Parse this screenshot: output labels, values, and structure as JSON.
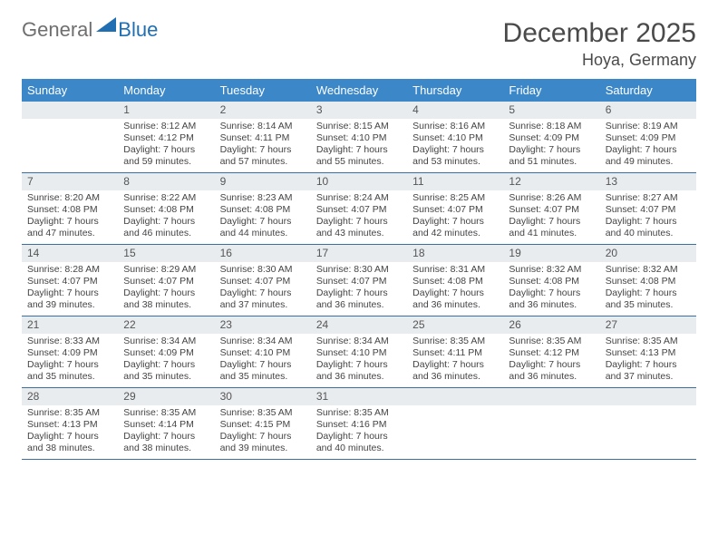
{
  "logo": {
    "general": "General",
    "blue": "Blue"
  },
  "title": "December 2025",
  "location": "Hoya, Germany",
  "colors": {
    "header_bg": "#3b87c8",
    "header_text": "#ffffff",
    "daynum_bg": "#e9ecef",
    "border": "#3b6fa0",
    "logo_general": "#706f6f",
    "logo_blue": "#1f6fb2",
    "body_text": "#444444",
    "title_text": "#4a4a4a",
    "page_bg": "#ffffff"
  },
  "typography": {
    "title_fontsize": 30,
    "location_fontsize": 18,
    "header_fontsize": 13,
    "daynum_fontsize": 12,
    "body_fontsize": 10.5,
    "logo_fontsize": 22
  },
  "day_headers": [
    "Sunday",
    "Monday",
    "Tuesday",
    "Wednesday",
    "Thursday",
    "Friday",
    "Saturday"
  ],
  "weeks": [
    [
      {
        "empty": true
      },
      {
        "num": "1",
        "sunrise": "Sunrise: 8:12 AM",
        "sunset": "Sunset: 4:12 PM",
        "dl1": "Daylight: 7 hours",
        "dl2": "and 59 minutes."
      },
      {
        "num": "2",
        "sunrise": "Sunrise: 8:14 AM",
        "sunset": "Sunset: 4:11 PM",
        "dl1": "Daylight: 7 hours",
        "dl2": "and 57 minutes."
      },
      {
        "num": "3",
        "sunrise": "Sunrise: 8:15 AM",
        "sunset": "Sunset: 4:10 PM",
        "dl1": "Daylight: 7 hours",
        "dl2": "and 55 minutes."
      },
      {
        "num": "4",
        "sunrise": "Sunrise: 8:16 AM",
        "sunset": "Sunset: 4:10 PM",
        "dl1": "Daylight: 7 hours",
        "dl2": "and 53 minutes."
      },
      {
        "num": "5",
        "sunrise": "Sunrise: 8:18 AM",
        "sunset": "Sunset: 4:09 PM",
        "dl1": "Daylight: 7 hours",
        "dl2": "and 51 minutes."
      },
      {
        "num": "6",
        "sunrise": "Sunrise: 8:19 AM",
        "sunset": "Sunset: 4:09 PM",
        "dl1": "Daylight: 7 hours",
        "dl2": "and 49 minutes."
      }
    ],
    [
      {
        "num": "7",
        "sunrise": "Sunrise: 8:20 AM",
        "sunset": "Sunset: 4:08 PM",
        "dl1": "Daylight: 7 hours",
        "dl2": "and 47 minutes."
      },
      {
        "num": "8",
        "sunrise": "Sunrise: 8:22 AM",
        "sunset": "Sunset: 4:08 PM",
        "dl1": "Daylight: 7 hours",
        "dl2": "and 46 minutes."
      },
      {
        "num": "9",
        "sunrise": "Sunrise: 8:23 AM",
        "sunset": "Sunset: 4:08 PM",
        "dl1": "Daylight: 7 hours",
        "dl2": "and 44 minutes."
      },
      {
        "num": "10",
        "sunrise": "Sunrise: 8:24 AM",
        "sunset": "Sunset: 4:07 PM",
        "dl1": "Daylight: 7 hours",
        "dl2": "and 43 minutes."
      },
      {
        "num": "11",
        "sunrise": "Sunrise: 8:25 AM",
        "sunset": "Sunset: 4:07 PM",
        "dl1": "Daylight: 7 hours",
        "dl2": "and 42 minutes."
      },
      {
        "num": "12",
        "sunrise": "Sunrise: 8:26 AM",
        "sunset": "Sunset: 4:07 PM",
        "dl1": "Daylight: 7 hours",
        "dl2": "and 41 minutes."
      },
      {
        "num": "13",
        "sunrise": "Sunrise: 8:27 AM",
        "sunset": "Sunset: 4:07 PM",
        "dl1": "Daylight: 7 hours",
        "dl2": "and 40 minutes."
      }
    ],
    [
      {
        "num": "14",
        "sunrise": "Sunrise: 8:28 AM",
        "sunset": "Sunset: 4:07 PM",
        "dl1": "Daylight: 7 hours",
        "dl2": "and 39 minutes."
      },
      {
        "num": "15",
        "sunrise": "Sunrise: 8:29 AM",
        "sunset": "Sunset: 4:07 PM",
        "dl1": "Daylight: 7 hours",
        "dl2": "and 38 minutes."
      },
      {
        "num": "16",
        "sunrise": "Sunrise: 8:30 AM",
        "sunset": "Sunset: 4:07 PM",
        "dl1": "Daylight: 7 hours",
        "dl2": "and 37 minutes."
      },
      {
        "num": "17",
        "sunrise": "Sunrise: 8:30 AM",
        "sunset": "Sunset: 4:07 PM",
        "dl1": "Daylight: 7 hours",
        "dl2": "and 36 minutes."
      },
      {
        "num": "18",
        "sunrise": "Sunrise: 8:31 AM",
        "sunset": "Sunset: 4:08 PM",
        "dl1": "Daylight: 7 hours",
        "dl2": "and 36 minutes."
      },
      {
        "num": "19",
        "sunrise": "Sunrise: 8:32 AM",
        "sunset": "Sunset: 4:08 PM",
        "dl1": "Daylight: 7 hours",
        "dl2": "and 36 minutes."
      },
      {
        "num": "20",
        "sunrise": "Sunrise: 8:32 AM",
        "sunset": "Sunset: 4:08 PM",
        "dl1": "Daylight: 7 hours",
        "dl2": "and 35 minutes."
      }
    ],
    [
      {
        "num": "21",
        "sunrise": "Sunrise: 8:33 AM",
        "sunset": "Sunset: 4:09 PM",
        "dl1": "Daylight: 7 hours",
        "dl2": "and 35 minutes."
      },
      {
        "num": "22",
        "sunrise": "Sunrise: 8:34 AM",
        "sunset": "Sunset: 4:09 PM",
        "dl1": "Daylight: 7 hours",
        "dl2": "and 35 minutes."
      },
      {
        "num": "23",
        "sunrise": "Sunrise: 8:34 AM",
        "sunset": "Sunset: 4:10 PM",
        "dl1": "Daylight: 7 hours",
        "dl2": "and 35 minutes."
      },
      {
        "num": "24",
        "sunrise": "Sunrise: 8:34 AM",
        "sunset": "Sunset: 4:10 PM",
        "dl1": "Daylight: 7 hours",
        "dl2": "and 36 minutes."
      },
      {
        "num": "25",
        "sunrise": "Sunrise: 8:35 AM",
        "sunset": "Sunset: 4:11 PM",
        "dl1": "Daylight: 7 hours",
        "dl2": "and 36 minutes."
      },
      {
        "num": "26",
        "sunrise": "Sunrise: 8:35 AM",
        "sunset": "Sunset: 4:12 PM",
        "dl1": "Daylight: 7 hours",
        "dl2": "and 36 minutes."
      },
      {
        "num": "27",
        "sunrise": "Sunrise: 8:35 AM",
        "sunset": "Sunset: 4:13 PM",
        "dl1": "Daylight: 7 hours",
        "dl2": "and 37 minutes."
      }
    ],
    [
      {
        "num": "28",
        "sunrise": "Sunrise: 8:35 AM",
        "sunset": "Sunset: 4:13 PM",
        "dl1": "Daylight: 7 hours",
        "dl2": "and 38 minutes."
      },
      {
        "num": "29",
        "sunrise": "Sunrise: 8:35 AM",
        "sunset": "Sunset: 4:14 PM",
        "dl1": "Daylight: 7 hours",
        "dl2": "and 38 minutes."
      },
      {
        "num": "30",
        "sunrise": "Sunrise: 8:35 AM",
        "sunset": "Sunset: 4:15 PM",
        "dl1": "Daylight: 7 hours",
        "dl2": "and 39 minutes."
      },
      {
        "num": "31",
        "sunrise": "Sunrise: 8:35 AM",
        "sunset": "Sunset: 4:16 PM",
        "dl1": "Daylight: 7 hours",
        "dl2": "and 40 minutes."
      },
      {
        "empty": true
      },
      {
        "empty": true
      },
      {
        "empty": true
      }
    ]
  ]
}
